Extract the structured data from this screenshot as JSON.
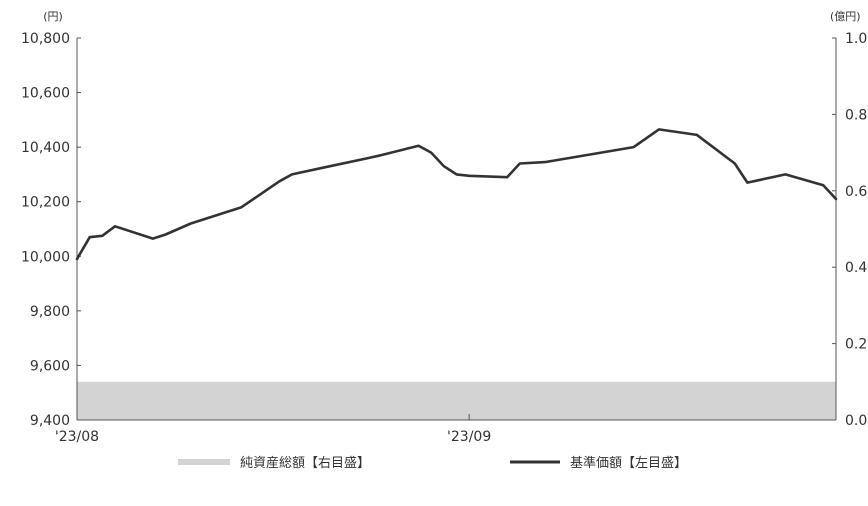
{
  "chart_data": {
    "type": "line",
    "title": "",
    "left_axis": {
      "unit": "(円)",
      "ylim": [
        9400,
        10800
      ],
      "ticks": [
        "9,400",
        "9,600",
        "9,800",
        "10,000",
        "10,200",
        "10,400",
        "10,600",
        "10,800"
      ]
    },
    "right_axis": {
      "unit": "(億円)",
      "ylim": [
        0.0,
        1.0
      ],
      "ticks": [
        "0.0",
        "0.2",
        "0.4",
        "0.6",
        "0.8",
        "1.0"
      ]
    },
    "x_axis": {
      "range": [
        "2023-08-01",
        "2023-09-30"
      ],
      "tick_labels": [
        {
          "date": "2023-08-01",
          "label": "'23/08"
        },
        {
          "date": "2023-09-01",
          "label": "'23/09"
        }
      ]
    },
    "series": [
      {
        "name": "純資産総額【右目盛】",
        "type": "area",
        "axis": "right",
        "color": "#d3d3d3",
        "x": [
          "2023-08-01",
          "2023-09-30"
        ],
        "y": [
          0.1,
          0.1
        ]
      },
      {
        "name": "基準価額【左目盛】",
        "type": "line",
        "axis": "left",
        "color": "#333333",
        "x": [
          "2023-08-01",
          "2023-08-02",
          "2023-08-03",
          "2023-08-04",
          "2023-08-07",
          "2023-08-08",
          "2023-08-10",
          "2023-08-14",
          "2023-08-17",
          "2023-08-18",
          "2023-08-21",
          "2023-08-24",
          "2023-08-25",
          "2023-08-28",
          "2023-08-29",
          "2023-08-30",
          "2023-08-31",
          "2023-09-01",
          "2023-09-04",
          "2023-09-05",
          "2023-09-07",
          "2023-09-14",
          "2023-09-16",
          "2023-09-19",
          "2023-09-22",
          "2023-09-23",
          "2023-09-26",
          "2023-09-29",
          "2023-09-30"
        ],
        "y": [
          9990,
          10070,
          10075,
          10110,
          10065,
          10080,
          10120,
          10180,
          10275,
          10300,
          10330,
          10360,
          10370,
          10405,
          10380,
          10330,
          10300,
          10295,
          10290,
          10340,
          10345,
          10400,
          10465,
          10445,
          10340,
          10270,
          10300,
          10260,
          10210
        ]
      }
    ]
  }
}
